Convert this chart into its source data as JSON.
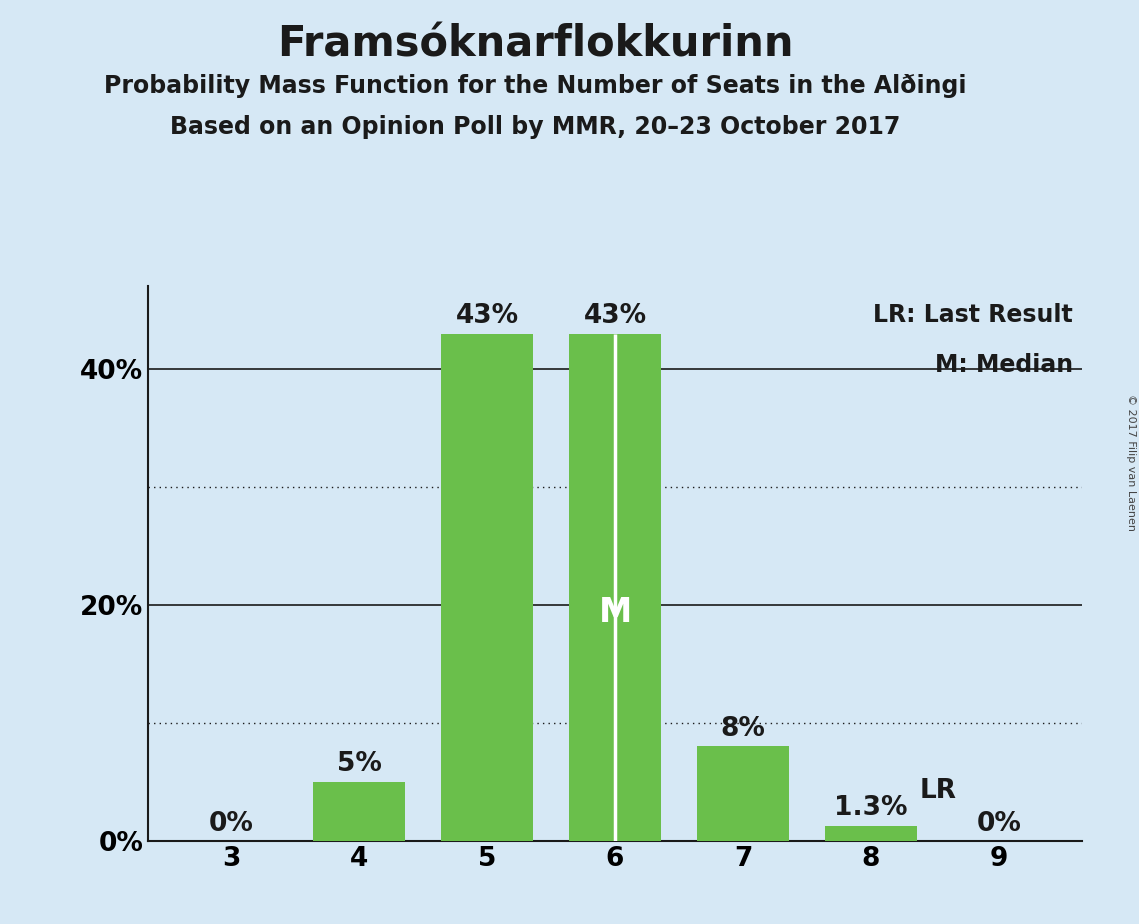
{
  "title": "Framsóknarflokkurinn",
  "subtitle1": "Probability Mass Function for the Number of Seats in the Alðingi",
  "subtitle2": "Based on an Opinion Poll by MMR, 20–23 October 2017",
  "categories": [
    3,
    4,
    5,
    6,
    7,
    8,
    9
  ],
  "values": [
    0.0,
    0.05,
    0.43,
    0.43,
    0.08,
    0.013,
    0.0
  ],
  "bar_labels": [
    "0%",
    "5%",
    "43%",
    "43%",
    "8%",
    "1.3%",
    "0%"
  ],
  "bar_color": "#6abf4b",
  "background_color": "#d6e8f5",
  "median_bar": 6,
  "median_label": "M",
  "lr_bar": 8,
  "lr_label": "LR",
  "yticks": [
    0.0,
    0.2,
    0.4
  ],
  "ytick_labels": [
    "0%",
    "20%",
    "40%"
  ],
  "ylim": [
    0,
    0.47
  ],
  "legend_lr": "LR: Last Result",
  "legend_m": "M: Median",
  "copyright": "© 2017 Filip van Laenen",
  "title_fontsize": 30,
  "subtitle_fontsize": 17,
  "axis_fontsize": 19,
  "bar_label_fontsize": 19,
  "legend_fontsize": 17,
  "median_line_color": "#ffffff",
  "dotted_grid_levels": [
    0.1,
    0.3
  ],
  "solid_grid_levels": [
    0.2,
    0.4
  ],
  "bar_width": 0.72
}
